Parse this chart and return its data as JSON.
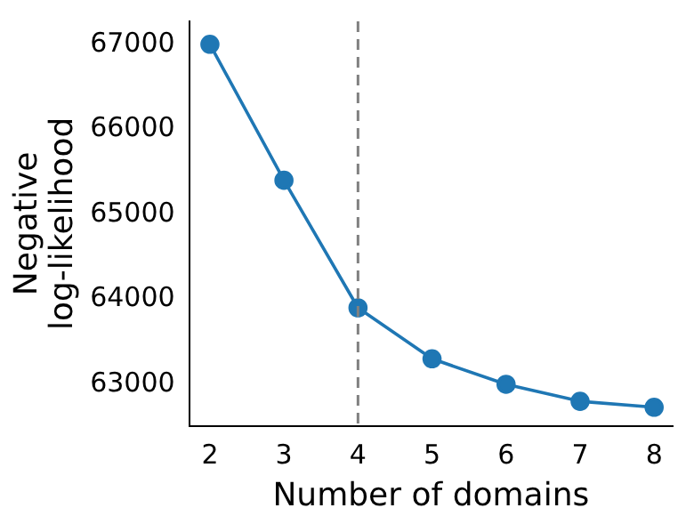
{
  "chart_data": {
    "type": "line",
    "xlabel": "Number of domains",
    "ylabel": "Negative\nlog-likelihood",
    "x": [
      2,
      3,
      4,
      5,
      6,
      7,
      8
    ],
    "series": [
      {
        "color": "#1f77b4",
        "values": [
          67000,
          65400,
          63900,
          63300,
          63000,
          62800,
          62730
        ]
      }
    ],
    "xlim": [
      1.72,
      8.25
    ],
    "xticks": [
      2,
      3,
      4,
      5,
      6,
      7,
      8
    ],
    "ylim": [
      62510,
      67270
    ],
    "yticks": [
      63000,
      64000,
      65000,
      66000,
      67000
    ],
    "marker": "circle",
    "line_style": "solid",
    "grid": false,
    "legend": false,
    "ref_lines": [
      {
        "axis": "x",
        "value": 4,
        "color": "#808080",
        "line_style": "dashed"
      }
    ]
  }
}
